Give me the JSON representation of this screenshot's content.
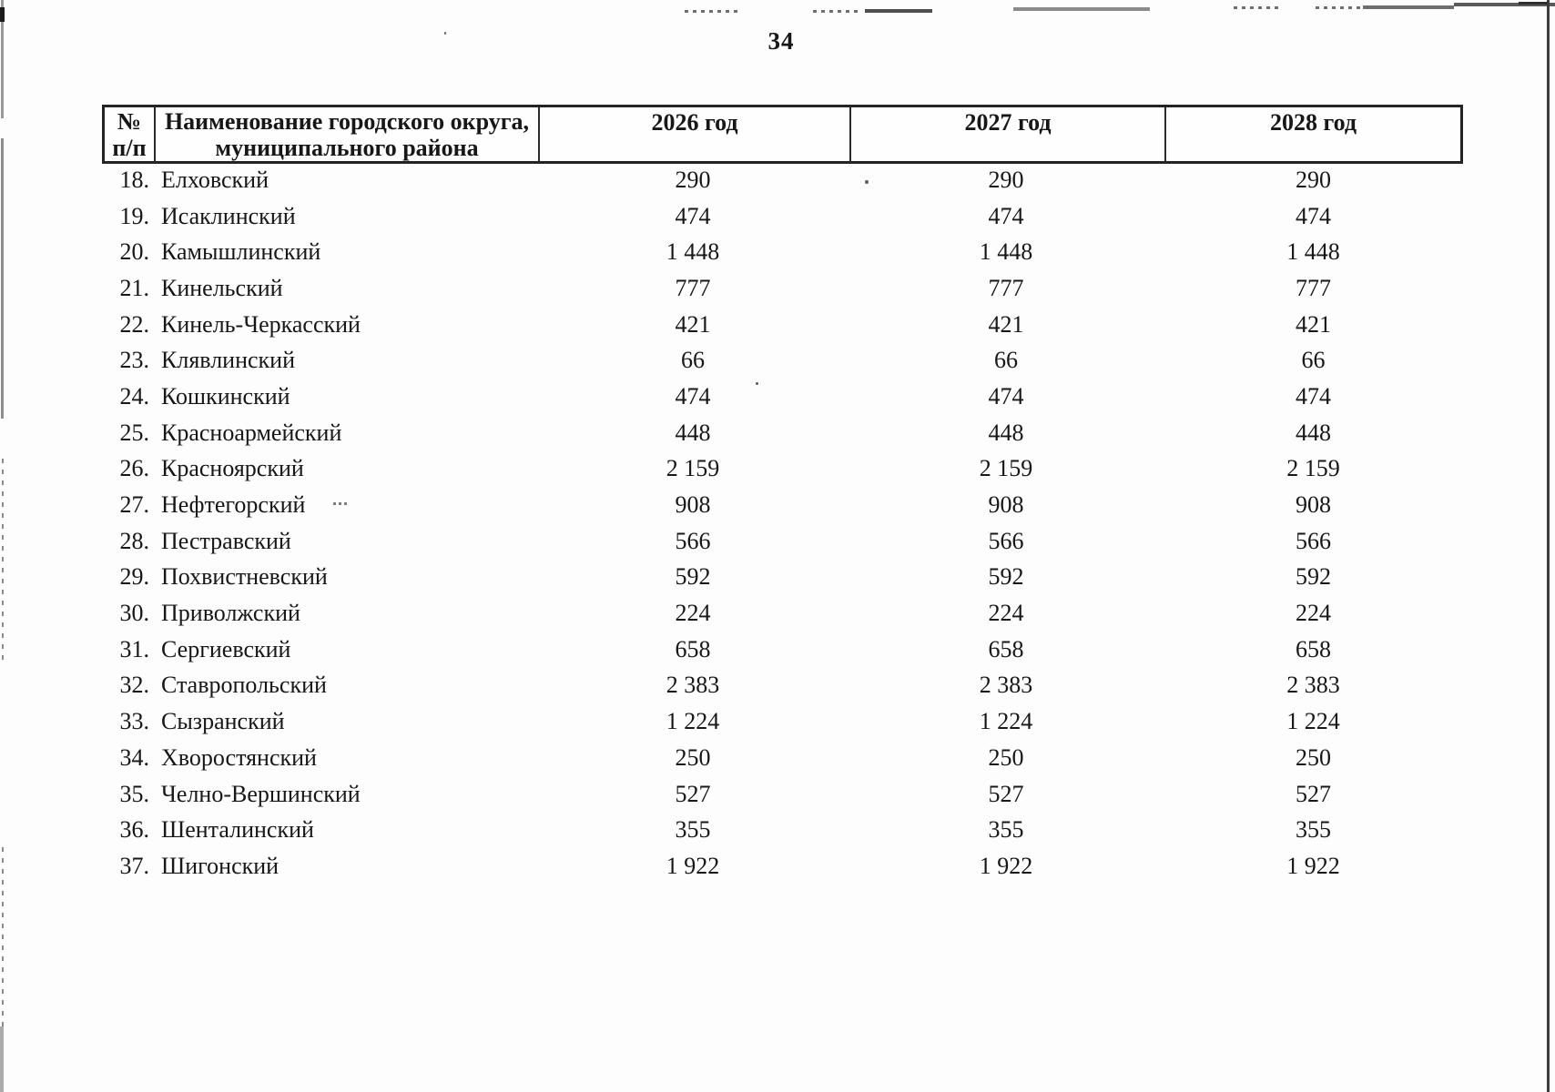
{
  "page": {
    "number": "34"
  },
  "table": {
    "header": {
      "num_line1": "№",
      "num_line2": "п/п",
      "name_line1": "Наименование городского округа,",
      "name_line2": "муниципального района",
      "year_2026": "2026 год",
      "year_2027": "2027 год",
      "year_2028": "2028 год"
    },
    "rows": [
      {
        "num": "18.",
        "name": "Елховский",
        "y2026": "290",
        "y2027": "290",
        "y2028": "290"
      },
      {
        "num": "19.",
        "name": "Исаклинский",
        "y2026": "474",
        "y2027": "474",
        "y2028": "474"
      },
      {
        "num": "20.",
        "name": "Камышлинский",
        "y2026": "1 448",
        "y2027": "1 448",
        "y2028": "1 448"
      },
      {
        "num": "21.",
        "name": "Кинельский",
        "y2026": "777",
        "y2027": "777",
        "y2028": "777"
      },
      {
        "num": "22.",
        "name": "Кинель-Черкасский",
        "y2026": "421",
        "y2027": "421",
        "y2028": "421"
      },
      {
        "num": "23.",
        "name": "Клявлинский",
        "y2026": "66",
        "y2027": "66",
        "y2028": "66"
      },
      {
        "num": "24.",
        "name": "Кошкинский",
        "y2026": "474",
        "y2027": "474",
        "y2028": "474"
      },
      {
        "num": "25.",
        "name": "Красноармейский",
        "y2026": "448",
        "y2027": "448",
        "y2028": "448"
      },
      {
        "num": "26.",
        "name": "Красноярский",
        "y2026": "2 159",
        "y2027": "2 159",
        "y2028": "2 159"
      },
      {
        "num": "27.",
        "name": "Нефтегорский",
        "y2026": "908",
        "y2027": "908",
        "y2028": "908"
      },
      {
        "num": "28.",
        "name": "Пестравский",
        "y2026": "566",
        "y2027": "566",
        "y2028": "566"
      },
      {
        "num": "29.",
        "name": "Похвистневский",
        "y2026": "592",
        "y2027": "592",
        "y2028": "592"
      },
      {
        "num": "30.",
        "name": "Приволжский",
        "y2026": "224",
        "y2027": "224",
        "y2028": "224"
      },
      {
        "num": "31.",
        "name": "Сергиевский",
        "y2026": "658",
        "y2027": "658",
        "y2028": "658"
      },
      {
        "num": "32.",
        "name": "Ставропольский",
        "y2026": "2 383",
        "y2027": "2 383",
        "y2028": "2 383"
      },
      {
        "num": "33.",
        "name": "Сызранский",
        "y2026": "1 224",
        "y2027": "1 224",
        "y2028": "1 224"
      },
      {
        "num": "34.",
        "name": "Хворостянский",
        "y2026": "250",
        "y2027": "250",
        "y2028": "250"
      },
      {
        "num": "35.",
        "name": "Челно-Вершинский",
        "y2026": "527",
        "y2027": "527",
        "y2028": "527"
      },
      {
        "num": "36.",
        "name": "Шенталинский",
        "y2026": "355",
        "y2027": "355",
        "y2028": "355"
      },
      {
        "num": "37.",
        "name": "Шигонский",
        "y2026": "1 922",
        "y2027": "1 922",
        "y2028": "1 922"
      }
    ]
  }
}
